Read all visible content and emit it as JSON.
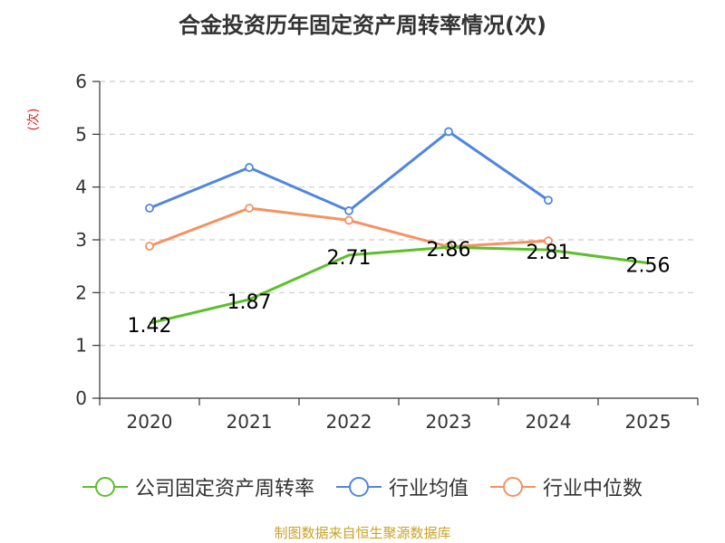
{
  "title": "合金投资历年固定资产周转率情况(次)",
  "source": "制图数据来自恒生聚源数据库",
  "source_color": "#c9a227",
  "y_unit_color": "#e02020",
  "legend": [
    {
      "name": "公司固定资产周转率",
      "color": "#5cbf2a"
    },
    {
      "name": "行业均值",
      "color": "#4f86e0"
    },
    {
      "name": "行业中位数",
      "color": "#f59261"
    }
  ],
  "chart_data": {
    "type": "line",
    "title": "合金投资历年固定资产周转率情况(次)",
    "xlabel": "",
    "ylabel": "(次)",
    "categories": [
      "2020",
      "2021",
      "2022",
      "2023",
      "2024",
      "2025"
    ],
    "ylim": [
      0,
      6
    ],
    "yticks": [
      0,
      1,
      2,
      3,
      4,
      5,
      6
    ],
    "grid": true,
    "legend_position": "bottom",
    "series": [
      {
        "name": "公司固定资产周转率",
        "color": "#5cbf2a",
        "values": [
          1.42,
          1.87,
          2.71,
          2.86,
          2.81,
          2.56
        ],
        "labels": [
          "1.42",
          "1.87",
          "2.71",
          "2.86",
          "2.81",
          "2.56"
        ]
      },
      {
        "name": "行业均值",
        "color": "#4f86e0",
        "values": [
          3.6,
          4.37,
          3.55,
          5.05,
          3.75,
          null
        ]
      },
      {
        "name": "行业中位数",
        "color": "#f59261",
        "values": [
          2.88,
          3.6,
          3.37,
          2.87,
          2.98,
          null
        ]
      }
    ]
  }
}
